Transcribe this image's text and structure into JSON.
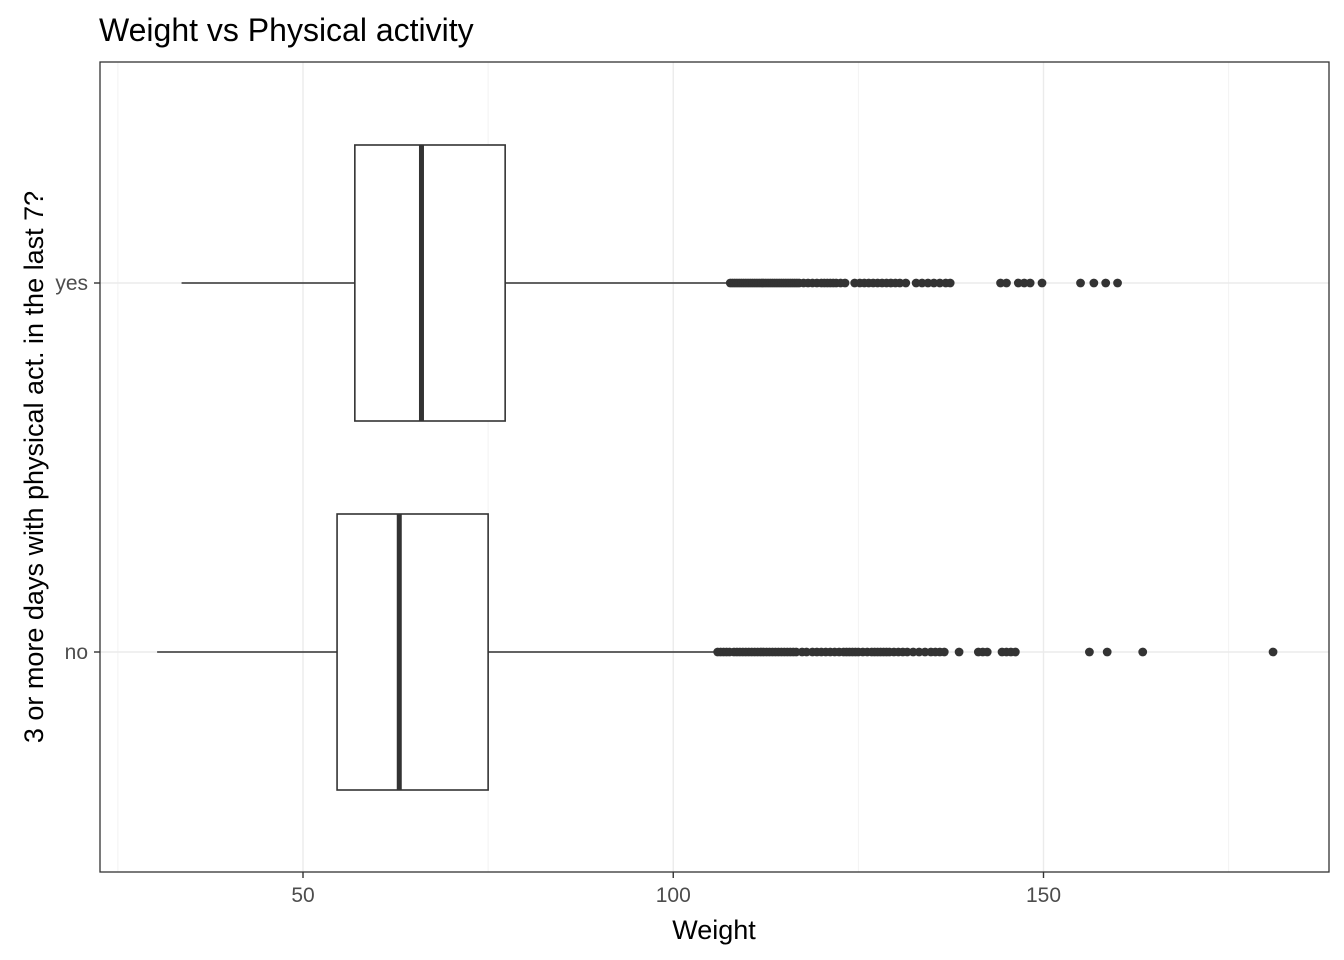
{
  "chart_data": {
    "type": "boxplot",
    "orientation": "horizontal",
    "title": "Weight vs Physical activity",
    "xlabel": "Weight",
    "ylabel": "3 or more days with physical act. in the last 7?",
    "xlim": [
      25,
      185
    ],
    "x_ticks": [
      50,
      100,
      150
    ],
    "grid": true,
    "categories": [
      "yes",
      "no"
    ],
    "series": [
      {
        "category": "yes",
        "whisker_low": 33.6,
        "q1": 57.0,
        "median": 66.0,
        "q3": 77.3,
        "whisker_high": 107.6,
        "outliers": [
          107.7,
          108.0,
          108.3,
          108.6,
          108.9,
          109.2,
          109.5,
          109.8,
          110.1,
          110.4,
          110.7,
          111.0,
          111.3,
          111.6,
          111.9,
          112.2,
          112.5,
          112.8,
          113.1,
          113.4,
          113.7,
          114.0,
          114.3,
          114.6,
          114.9,
          115.2,
          115.5,
          115.8,
          116.1,
          116.4,
          116.7,
          117.0,
          117.6,
          118.2,
          118.8,
          119.4,
          120.0,
          120.4,
          120.8,
          121.2,
          121.6,
          122.0,
          122.6,
          123.2,
          124.5,
          125.2,
          125.8,
          126.4,
          127.0,
          127.6,
          128.2,
          128.8,
          129.4,
          130.0,
          130.6,
          131.4,
          132.8,
          133.6,
          134.4,
          135.2,
          136.0,
          136.8,
          137.4,
          144.2,
          145.0,
          146.6,
          147.4,
          148.2,
          149.8,
          155.0,
          156.8,
          158.4,
          160.0
        ]
      },
      {
        "category": "no",
        "whisker_low": 30.3,
        "q1": 54.6,
        "median": 63.0,
        "q3": 75.0,
        "whisker_high": 105.8,
        "outliers": [
          106.0,
          106.4,
          106.8,
          107.2,
          107.6,
          108.2,
          108.6,
          109.0,
          109.4,
          109.8,
          110.2,
          110.6,
          111.0,
          111.4,
          111.8,
          112.2,
          112.6,
          113.0,
          113.4,
          113.8,
          114.2,
          114.6,
          115.0,
          115.4,
          115.8,
          116.2,
          116.6,
          117.4,
          118.0,
          118.8,
          119.4,
          120.0,
          120.6,
          121.2,
          121.8,
          122.4,
          123.0,
          123.4,
          123.8,
          124.2,
          124.6,
          125.0,
          125.6,
          126.2,
          126.8,
          127.2,
          127.6,
          128.0,
          128.4,
          128.8,
          129.2,
          129.8,
          130.4,
          131.0,
          131.6,
          132.4,
          133.2,
          134.0,
          134.8,
          135.4,
          136.0,
          136.6,
          138.6,
          141.2,
          141.8,
          142.4,
          144.4,
          145.0,
          145.6,
          146.2,
          156.2,
          158.6,
          163.4,
          181.0
        ]
      }
    ]
  }
}
